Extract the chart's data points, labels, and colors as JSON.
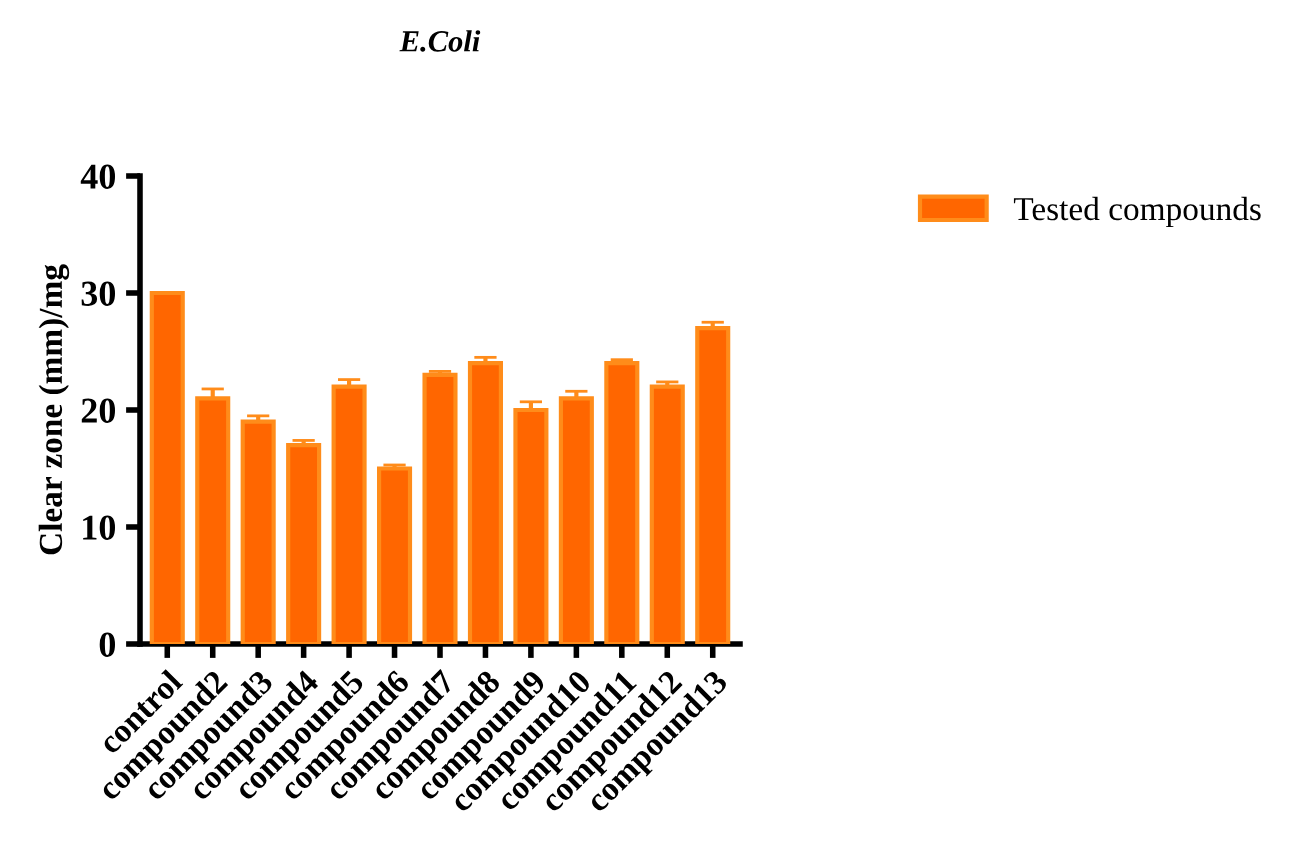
{
  "chart_data": {
    "type": "bar",
    "title": "E.Coli",
    "ylabel": "Clear zone (mm)/mg",
    "categories": [
      "control",
      "compound2",
      "compound3",
      "compound4",
      "compound5",
      "compound6",
      "compound7",
      "compound8",
      "compound9",
      "compound10",
      "compound11",
      "compound12",
      "compound13"
    ],
    "series": [
      {
        "name": "Tested compounds",
        "color": "#ff6600",
        "values": [
          30,
          21,
          19,
          17,
          22,
          15,
          23,
          24,
          20,
          21,
          24,
          22,
          27
        ],
        "errors": [
          null,
          0.8,
          0.5,
          0.4,
          0.6,
          0.3,
          0.3,
          0.5,
          0.7,
          0.6,
          0.3,
          0.4,
          0.5
        ]
      }
    ],
    "ylim": [
      0,
      40
    ],
    "yticks": [
      0,
      10,
      20,
      30,
      40
    ],
    "grid": false,
    "legend": "top right"
  }
}
